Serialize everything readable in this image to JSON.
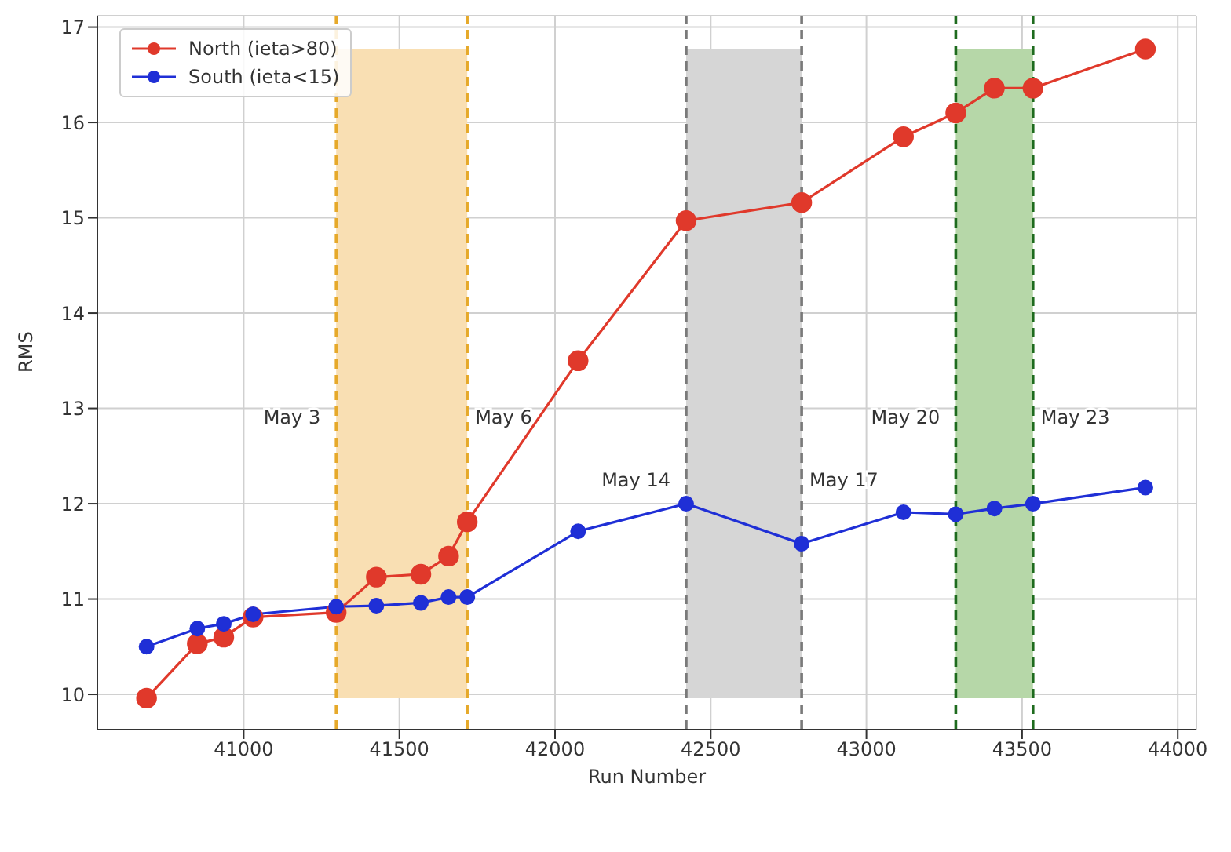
{
  "chart_data": {
    "type": "line",
    "xlabel": "Run Number",
    "ylabel": "RMS",
    "x": [
      40688,
      40851,
      40936,
      41030,
      41297,
      41426,
      41569,
      41658,
      41718,
      42074,
      42421,
      42792,
      43119,
      43287,
      43411,
      43535,
      43896
    ],
    "series": [
      {
        "name": "North (ieta>80)",
        "color": "#e0392b",
        "values": [
          9.96,
          10.53,
          10.6,
          10.81,
          10.86,
          11.23,
          11.26,
          11.45,
          11.81,
          13.5,
          14.97,
          15.16,
          15.85,
          16.1,
          16.36,
          16.36,
          16.77
        ]
      },
      {
        "name": "South (ieta<15)",
        "color": "#1f2fd6",
        "values": [
          10.5,
          10.69,
          10.74,
          10.84,
          10.92,
          10.93,
          10.96,
          11.02,
          11.02,
          11.71,
          12.0,
          11.58,
          11.91,
          11.89,
          11.95,
          12.0,
          12.17
        ]
      }
    ],
    "xlim": [
      40530,
      44060
    ],
    "ylim": [
      9.63,
      17.12
    ],
    "xticks": [
      41000,
      41500,
      42000,
      42500,
      43000,
      43500,
      44000
    ],
    "yticks": [
      10,
      11,
      12,
      13,
      14,
      15,
      16,
      17
    ],
    "bands": [
      {
        "axis": "x",
        "from": 41297,
        "to": 41718,
        "color": "#f9dfb3"
      },
      {
        "axis": "x",
        "from": 42421,
        "to": 42792,
        "color": "#d6d6d6"
      },
      {
        "axis": "x",
        "from": 43287,
        "to": 43535,
        "color": "#b6d7a8"
      }
    ],
    "ref_lines": [
      {
        "axis": "x",
        "value": 41297,
        "label": "May 3",
        "color": "#e6a92a",
        "line_style": "dashed"
      },
      {
        "axis": "x",
        "value": 41718,
        "label": "May 6",
        "color": "#e6a92a",
        "line_style": "dashed"
      },
      {
        "axis": "x",
        "value": 42421,
        "label": "May 14",
        "color": "#7a7a7a",
        "line_style": "dashed"
      },
      {
        "axis": "x",
        "value": 42792,
        "label": "May 17",
        "color": "#7a7a7a",
        "line_style": "dashed"
      },
      {
        "axis": "x",
        "value": 43287,
        "label": "May 20",
        "color": "#1e6b1e",
        "line_style": "dashed"
      },
      {
        "axis": "x",
        "value": 43535,
        "label": "May 23",
        "color": "#1e6b1e",
        "line_style": "dashed"
      }
    ],
    "grid": true,
    "legend": "top left",
    "marker": "circle",
    "line_style": "solid"
  }
}
